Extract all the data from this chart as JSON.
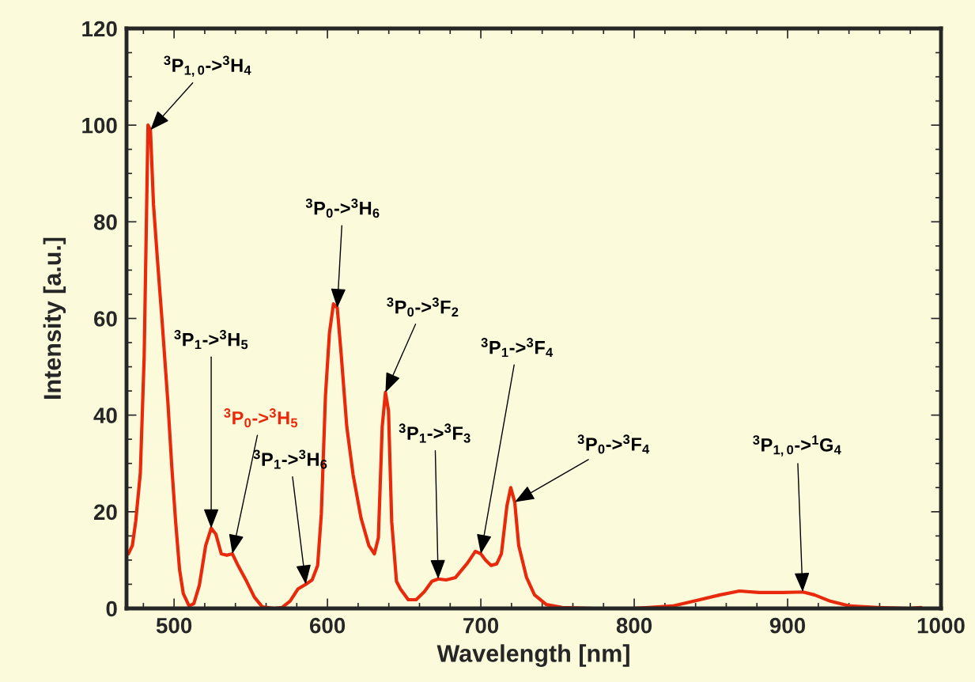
{
  "chart_data": {
    "type": "line",
    "xlabel": "Wavelength [nm]",
    "ylabel": "Intensity [a.u.]",
    "xlim": [
      469,
      1000
    ],
    "ylim": [
      0,
      120
    ],
    "xticks": [
      500,
      600,
      700,
      800,
      900,
      1000
    ],
    "yticks": [
      0,
      20,
      40,
      60,
      80,
      100,
      120
    ],
    "grid": false,
    "series": [
      {
        "color": "#e8290b",
        "x": [
          470.2,
          472.8,
          475,
          478,
          480.5,
          483,
          484.6,
          486.6,
          489.2,
          492.3,
          496,
          498.5,
          501,
          503.6,
          506,
          509.8,
          512.9,
          516.5,
          520.6,
          524.2,
          527.2,
          530.8,
          534.4,
          538,
          542,
          547.3,
          552.4,
          557.6,
          565.3,
          570.4,
          575.6,
          580.7,
          585.9,
          590,
          593.6,
          596,
          598.7,
          601.3,
          603.9,
          606.4,
          609,
          612.6,
          616.7,
          621.9,
          627,
          630.6,
          633.2,
          635.7,
          637.8,
          639.8,
          641.9,
          645,
          647.6,
          652.7,
          657.8,
          663,
          668.1,
          672.2,
          677.4,
          683.5,
          691.3,
          696.4,
          700,
          703.1,
          706.7,
          710.3,
          713.4,
          717,
          719.5,
          722.1,
          724.7,
          729.8,
          735,
          742.7,
          753,
          773.5,
          799,
          809.5,
          825,
          840,
          856,
          868.6,
          881.5,
          897,
          909.8,
          917.5,
          927.8,
          940.6,
          958.6,
          979,
          987
        ],
        "values": [
          11.3,
          13,
          18,
          28,
          52,
          100,
          99,
          83.5,
          72,
          59,
          42.5,
          29.4,
          18,
          8,
          3.1,
          0.5,
          1,
          4.8,
          13,
          16.6,
          15.4,
          11.3,
          11,
          11.3,
          8.7,
          5.6,
          2.3,
          0.3,
          0,
          0.2,
          1.5,
          4,
          5,
          5.9,
          8.9,
          19.5,
          44,
          57,
          63,
          62.2,
          52.4,
          37.6,
          27.7,
          18.7,
          13,
          11.3,
          14.6,
          37.6,
          44.7,
          40.9,
          17.9,
          5.6,
          4,
          1.8,
          1.8,
          3.4,
          5.6,
          6.1,
          5.9,
          6.4,
          9.4,
          11.8,
          11.3,
          10,
          8.9,
          9.2,
          11.3,
          21.2,
          25,
          22,
          13,
          6.4,
          2.8,
          0.8,
          0.2,
          0,
          0,
          0.2,
          0.5,
          1.6,
          2.8,
          3.6,
          3.3,
          3.3,
          3.4,
          2.8,
          1.5,
          0.5,
          0.2,
          0,
          0.2
        ]
      }
    ],
    "annotations": [
      {
        "text": "$^{3}$P$_{1,0}$->$^{3}$H$_{4}$",
        "x": 484.6,
        "y": 99
      },
      {
        "text": "$^{3}$P$_{1}$->$^{3}$H$_{5}$",
        "x": 524.2,
        "y": 16.6
      },
      {
        "text": "$^{3}$P$_{0}$->$^{3}$H$_{5}$",
        "x": 538,
        "y": 11.3
      },
      {
        "text": "$^{3}$P$_{1}$->$^{3}$H$_{6}$",
        "x": 585.9,
        "y": 5
      },
      {
        "text": "$^{3}$P$_{0}$->$^{3}$H$_{6}$",
        "x": 606.4,
        "y": 62.2
      },
      {
        "text": "$^{3}$P$_{0}$->$^{3}$F$_{2}$",
        "x": 637.8,
        "y": 44.7
      },
      {
        "text": "$^{3}$P$_{1}$->$^{3}$F$_{3}$",
        "x": 672.2,
        "y": 6.1
      },
      {
        "text": "$^{3}$P$_{1}$->$^{3}$F$_{4}$",
        "x": 700,
        "y": 11.3
      },
      {
        "text": "$^{3}$P$_{0}$->$^{3}$F$_{4}$",
        "x": 722.1,
        "y": 22
      },
      {
        "text": "$^{3}$P$_{1,0}$->$^{1}$G$_{4}$",
        "x": 909.8,
        "y": 3.4
      }
    ]
  }
}
